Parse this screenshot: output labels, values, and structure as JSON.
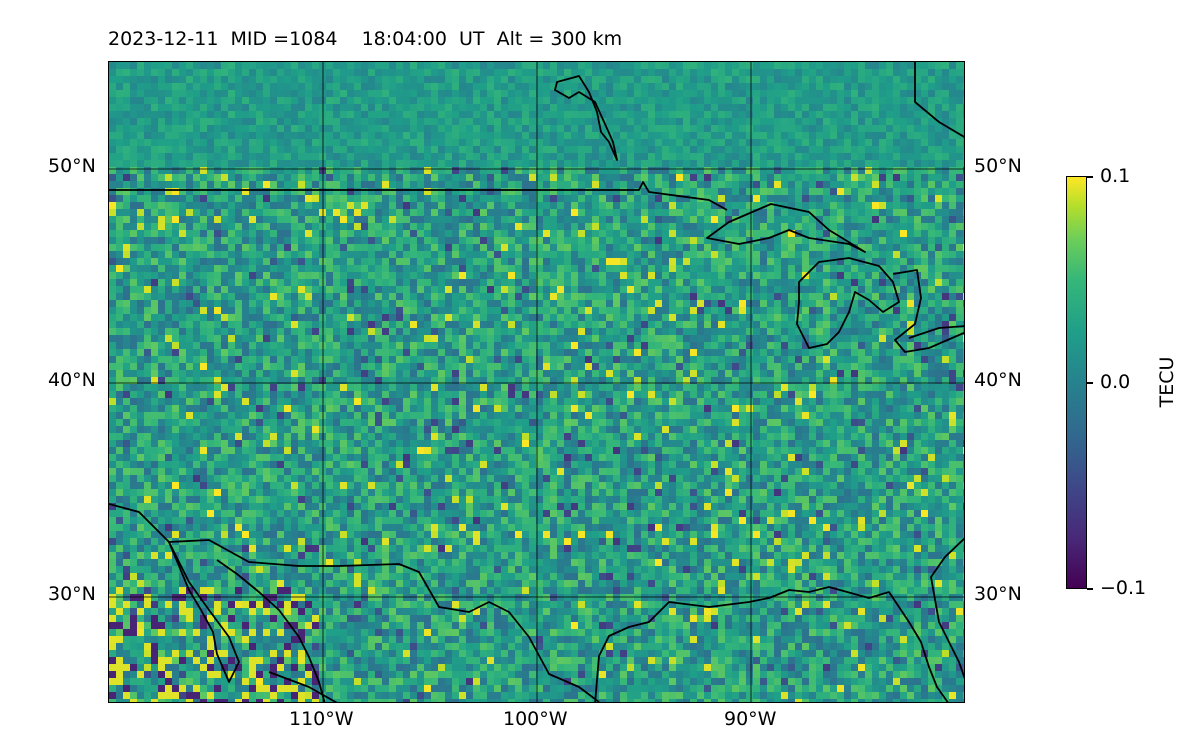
{
  "title": "2023-12-11  MID =1084    18:04:00  UT  Alt = 300 km",
  "map": {
    "lat_labels": [
      "50°N",
      "40°N",
      "30°N"
    ],
    "lon_labels": [
      "110°W",
      "100°W",
      "90°W"
    ],
    "lon_range": [
      -120,
      -80
    ],
    "lat_range": [
      25,
      55
    ],
    "gridlines": true,
    "coastlines": true
  },
  "colorbar": {
    "label": "TECU",
    "max_label": "0.1",
    "mid_label": "0.0",
    "min_label": "−0.1",
    "range": [
      -0.1,
      0.1
    ],
    "colormap": "viridis"
  },
  "colors": {
    "viridis_stops": [
      "#440154",
      "#482878",
      "#3e4989",
      "#31688e",
      "#26828e",
      "#1f9e89",
      "#35b779",
      "#6ece58",
      "#b5de2b",
      "#fde725"
    ]
  }
}
